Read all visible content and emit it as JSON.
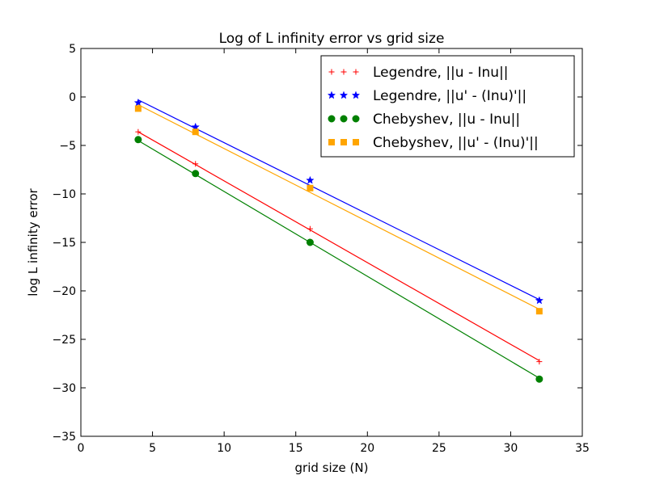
{
  "chart_data": {
    "type": "line",
    "title": "Log of L infinity error vs grid size",
    "xlabel": "grid size (N)",
    "ylabel": "log L infinity error",
    "xlim": [
      0,
      35
    ],
    "ylim": [
      -35,
      5
    ],
    "xticks": [
      0,
      5,
      10,
      15,
      20,
      25,
      30,
      35
    ],
    "yticks": [
      5,
      0,
      -5,
      -10,
      -15,
      -20,
      -25,
      -30,
      -35
    ],
    "xtick_labels": [
      "0",
      "5",
      "10",
      "15",
      "20",
      "25",
      "30",
      "35"
    ],
    "ytick_labels": [
      "5",
      "0",
      "−5",
      "−10",
      "−15",
      "−20",
      "−25",
      "−30",
      "−35"
    ],
    "grid": false,
    "legend_position": "top-right",
    "x": [
      4,
      8,
      16,
      32
    ],
    "series": [
      {
        "name": "Legendre, ||u - Inu||",
        "color": "#ff0000",
        "marker": "plus",
        "values": [
          -3.6,
          -6.9,
          -13.6,
          -27.3
        ],
        "fit": [
          [
            4,
            -3.6
          ],
          [
            32,
            -27.2
          ]
        ]
      },
      {
        "name": "Legendre, ||u' - (Inu)'||",
        "color": "#0000ff",
        "marker": "star",
        "values": [
          -0.6,
          -3.1,
          -8.6,
          -21.0
        ],
        "fit": [
          [
            4,
            -0.3
          ],
          [
            32,
            -20.9
          ]
        ]
      },
      {
        "name": "Chebyshev, ||u - Inu||",
        "color": "#008000",
        "marker": "circle",
        "values": [
          -4.4,
          -7.9,
          -15.0,
          -29.1
        ],
        "fit": [
          [
            4,
            -4.5
          ],
          [
            32,
            -29.0
          ]
        ]
      },
      {
        "name": "Chebyshev, ||u' - (Inu)'||",
        "color": "#ffa500",
        "marker": "square",
        "values": [
          -1.2,
          -3.6,
          -9.4,
          -22.1
        ],
        "fit": [
          [
            4,
            -0.8
          ],
          [
            32,
            -21.9
          ]
        ]
      }
    ]
  }
}
